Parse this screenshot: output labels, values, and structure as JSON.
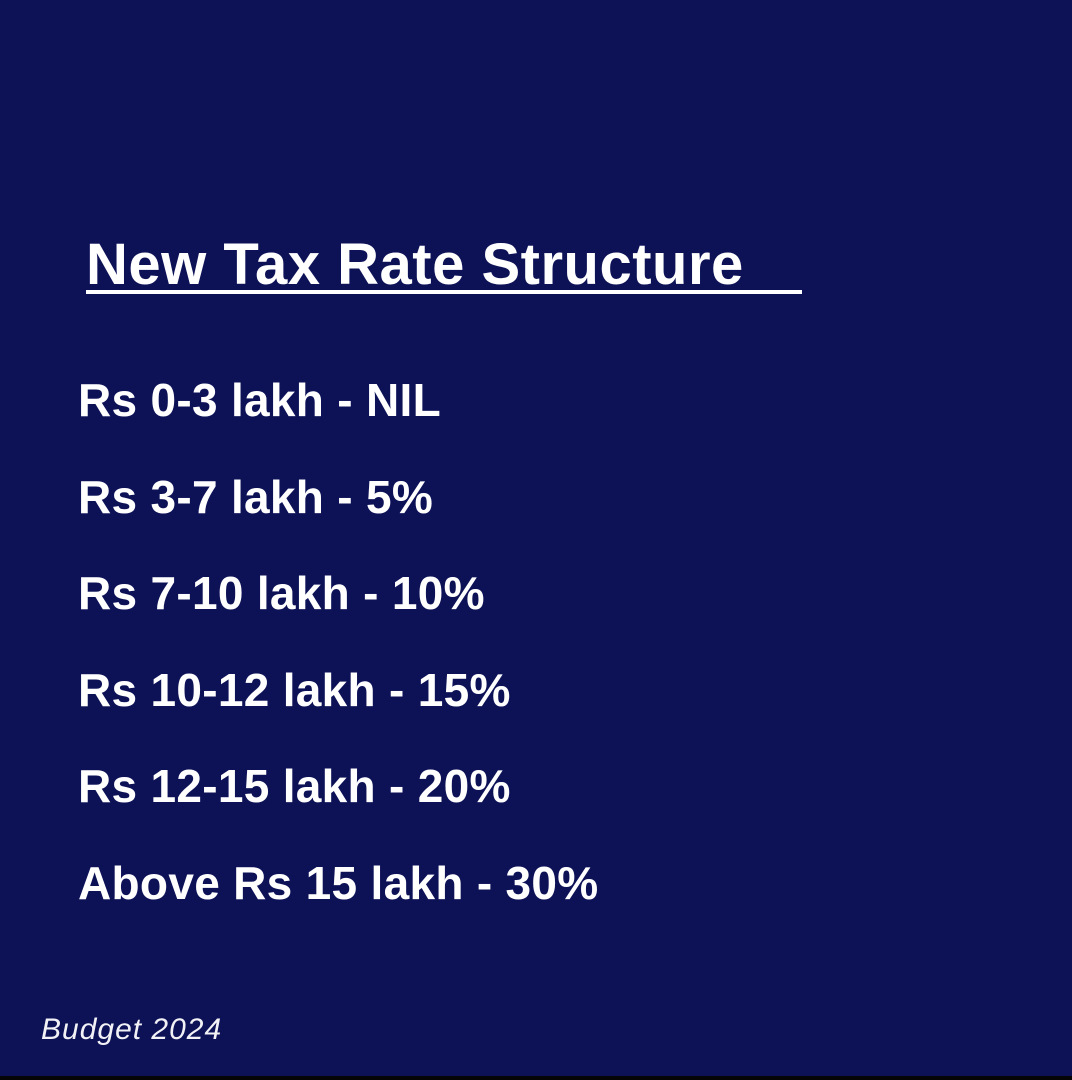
{
  "slide": {
    "title": "New Tax Rate Structure",
    "rates": [
      "Rs 0-3 lakh - NIL",
      "Rs 3-7 lakh - 5%",
      "Rs 7-10 lakh - 10%",
      "Rs 10-12 lakh - 15%",
      "Rs 12-15 lakh - 20%",
      "Above Rs 15 lakh - 30%"
    ],
    "footer": "Budget 2024"
  },
  "colors": {
    "background": "#0d1257",
    "text": "#ffffff"
  }
}
